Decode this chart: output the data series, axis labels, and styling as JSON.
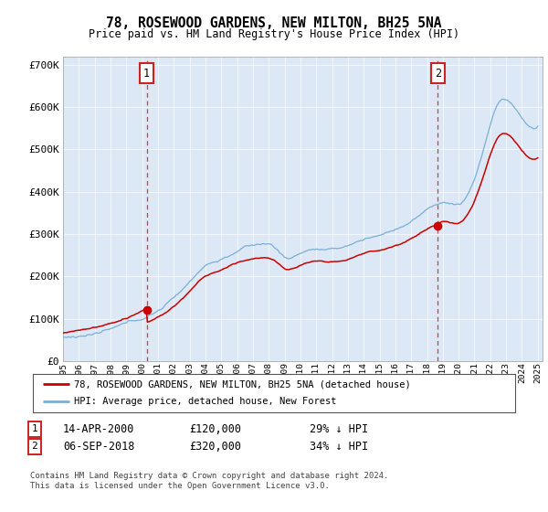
{
  "title": "78, ROSEWOOD GARDENS, NEW MILTON, BH25 5NA",
  "subtitle": "Price paid vs. HM Land Registry's House Price Index (HPI)",
  "ylim": [
    0,
    720000
  ],
  "yticks": [
    0,
    100000,
    200000,
    300000,
    400000,
    500000,
    600000,
    700000
  ],
  "ytick_labels": [
    "£0",
    "£100K",
    "£200K",
    "£300K",
    "£400K",
    "£500K",
    "£600K",
    "£700K"
  ],
  "hpi_color": "#7bafd4",
  "price_color": "#cc0000",
  "marker1_date": 2000.29,
  "marker1_price": 120000,
  "marker1_label": "1",
  "marker2_date": 2018.68,
  "marker2_price": 320000,
  "marker2_label": "2",
  "legend_line1": "78, ROSEWOOD GARDENS, NEW MILTON, BH25 5NA (detached house)",
  "legend_line2": "HPI: Average price, detached house, New Forest",
  "table_row1": [
    "1",
    "14-APR-2000",
    "£120,000",
    "29% ↓ HPI"
  ],
  "table_row2": [
    "2",
    "06-SEP-2018",
    "£320,000",
    "34% ↓ HPI"
  ],
  "footnote": "Contains HM Land Registry data © Crown copyright and database right 2024.\nThis data is licensed under the Open Government Licence v3.0.",
  "fig_bg": "#f0f0f0",
  "plot_bg": "#dce8f5"
}
